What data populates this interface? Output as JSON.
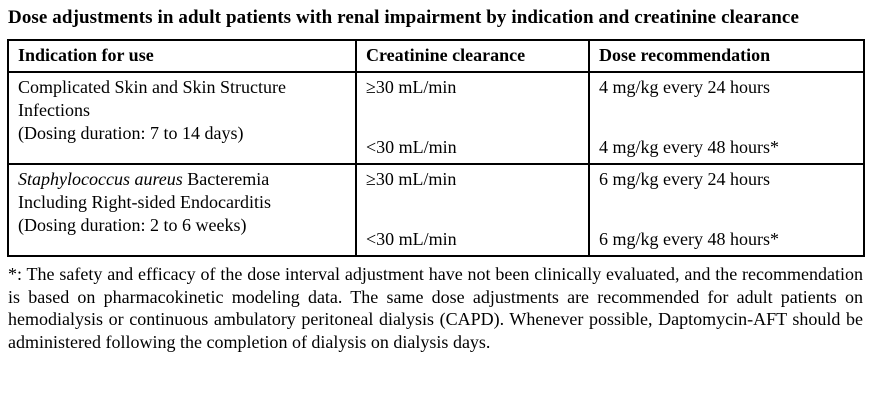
{
  "title": "Dose adjustments in adult patients with renal impairment by indication and creatinine clearance",
  "table": {
    "headers": [
      "Indication for use",
      "Creatinine clearance",
      "Dose recommendation"
    ],
    "rows": [
      {
        "indication": {
          "italic": "",
          "after_italic": "Complicated Skin and Skin Structure",
          "line2": "Infections",
          "line3": "(Dosing duration: 7 to 14 days)"
        },
        "clearance_high": "≥30 mL/min",
        "clearance_low": "<30 mL/min",
        "dose_high": "4 mg/kg every 24 hours",
        "dose_low": "4 mg/kg every 48 hours*"
      },
      {
        "indication": {
          "italic": "Staphylococcus aureus",
          "after_italic": " Bacteremia",
          "line2": "Including Right-sided Endocarditis",
          "line3": "(Dosing duration: 2 to 6 weeks)"
        },
        "clearance_high": "≥30 mL/min",
        "clearance_low": "<30 mL/min",
        "dose_high": "6 mg/kg every 24 hours",
        "dose_low": "6 mg/kg every 48 hours*"
      }
    ]
  },
  "footnote": "*: The safety and efficacy of the dose interval adjustment have not been clinically evaluated, and the recommendation is based on pharmacokinetic modeling data. The same dose adjustments are recommended for adult patients on hemodialysis or continuous ambulatory peritoneal dialysis (CAPD). Whenever possible, Daptomycin-AFT should be administered following the completion of dialysis on dialysis days.",
  "colors": {
    "text": "#000000",
    "background": "#ffffff",
    "border": "#000000"
  }
}
